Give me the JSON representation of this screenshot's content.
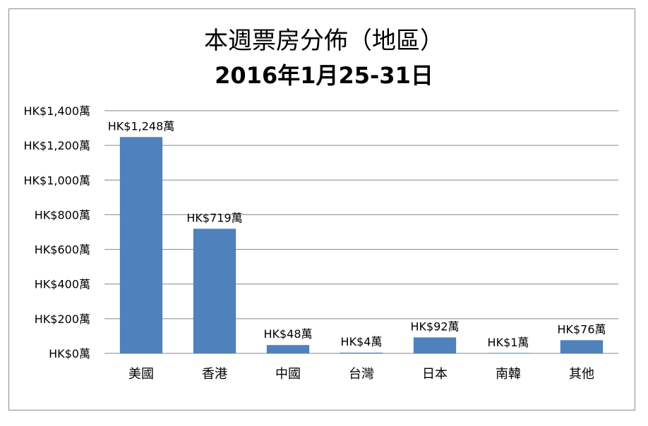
{
  "chart_data": {
    "type": "bar",
    "title": "本週票房分佈（地區）",
    "subtitle": "2016年1月25-31日",
    "categories": [
      "美國",
      "香港",
      "中國",
      "台灣",
      "日本",
      "南韓",
      "其他"
    ],
    "values": [
      1248,
      719,
      48,
      4,
      92,
      1,
      76
    ],
    "data_labels": [
      "HK$1,248萬",
      "HK$719萬",
      "HK$48萬",
      "HK$4萬",
      "HK$92萬",
      "HK$1萬",
      "HK$76萬"
    ],
    "y_ticks": [
      0,
      200,
      400,
      600,
      800,
      1000,
      1200,
      1400
    ],
    "y_tick_labels": [
      "HK$0萬",
      "HK$200萬",
      "HK$400萬",
      "HK$600萬",
      "HK$800萬",
      "HK$1,000萬",
      "HK$1,200萬",
      "HK$1,400萬"
    ],
    "ylim": [
      0,
      1400
    ],
    "xlabel": "",
    "ylabel": "",
    "grid": true,
    "legend": "none",
    "bar_color": "#4f81bd",
    "grid_color": "#868686"
  }
}
